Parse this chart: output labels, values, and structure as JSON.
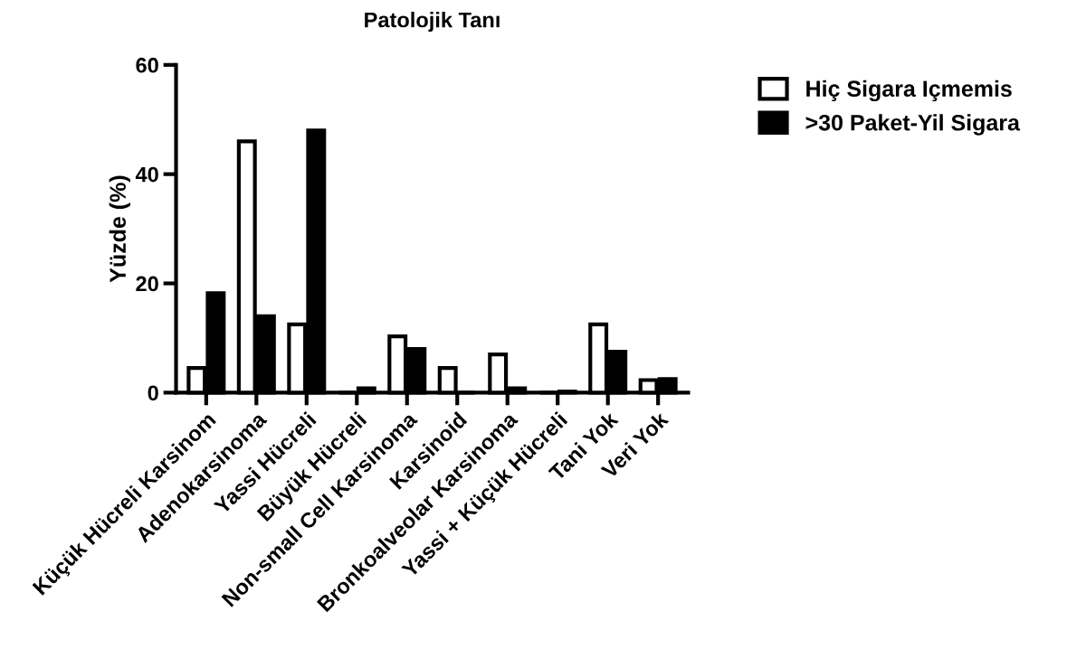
{
  "chart_data": {
    "type": "bar",
    "title": "Patolojik Tanı",
    "ylabel": "Yüzde (%)",
    "categories": [
      "Küçük Hücreli Karsinom",
      "Adenokarsinoma",
      "Yassi Hücreli",
      "Büyük Hücreli",
      "Non-small Cell Karsinoma",
      "Karsinoid",
      "Bronkoalveolar Karsinoma",
      "Yassi + Küçük Hücreli",
      "Tani Yok",
      "Veri Yok"
    ],
    "series": [
      {
        "name": "Hiç Sigara Içmemis",
        "color": "#ffffff",
        "values": [
          4.5,
          46,
          12.5,
          0,
          10.3,
          4.5,
          7,
          0,
          12.5,
          2.3
        ]
      },
      {
        "name": ">30 Paket-Yil Sigara",
        "color": "#000000",
        "values": [
          18.2,
          14,
          48,
          0.8,
          8,
          0,
          0.8,
          0.2,
          7.5,
          2.5
        ]
      }
    ],
    "ylim": [
      0,
      60
    ],
    "yticks": [
      0,
      20,
      40,
      60
    ],
    "grid": false,
    "legend": "top right"
  }
}
